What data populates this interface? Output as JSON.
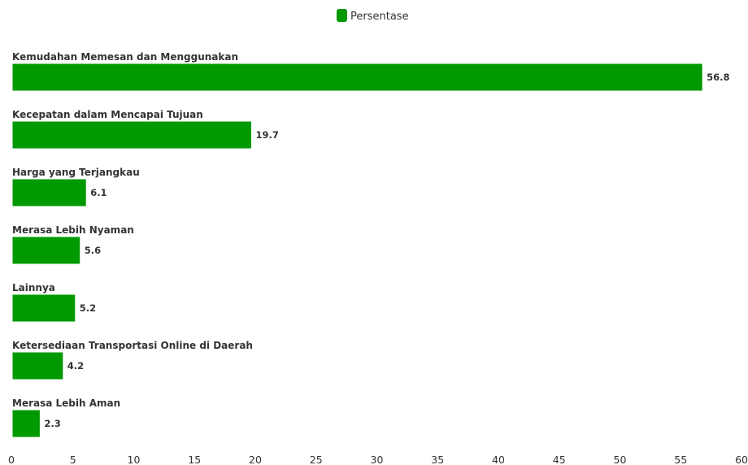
{
  "chart_data": {
    "type": "bar",
    "orientation": "horizontal",
    "title": "",
    "xlabel": "",
    "ylabel": "",
    "categories": [
      "Kemudahan Memesan dan Menggunakan",
      "Kecepatan dalam Mencapai Tujuan",
      "Harga yang Terjangkau",
      "Merasa Lebih Nyaman",
      "Lainnya",
      "Ketersediaan Transportasi Online di Daerah",
      "Merasa Lebih Aman"
    ],
    "series": [
      {
        "name": "Persentase",
        "color": "#009900",
        "values": [
          56.8,
          19.7,
          6.1,
          5.6,
          5.2,
          4.2,
          2.3
        ]
      }
    ],
    "xlim": [
      0,
      60
    ],
    "xticks": [
      0,
      5,
      10,
      15,
      20,
      25,
      30,
      35,
      40,
      45,
      50,
      55,
      60
    ],
    "legend": {
      "position": "top-center",
      "entries": [
        "Persentase"
      ]
    },
    "grid": false
  }
}
